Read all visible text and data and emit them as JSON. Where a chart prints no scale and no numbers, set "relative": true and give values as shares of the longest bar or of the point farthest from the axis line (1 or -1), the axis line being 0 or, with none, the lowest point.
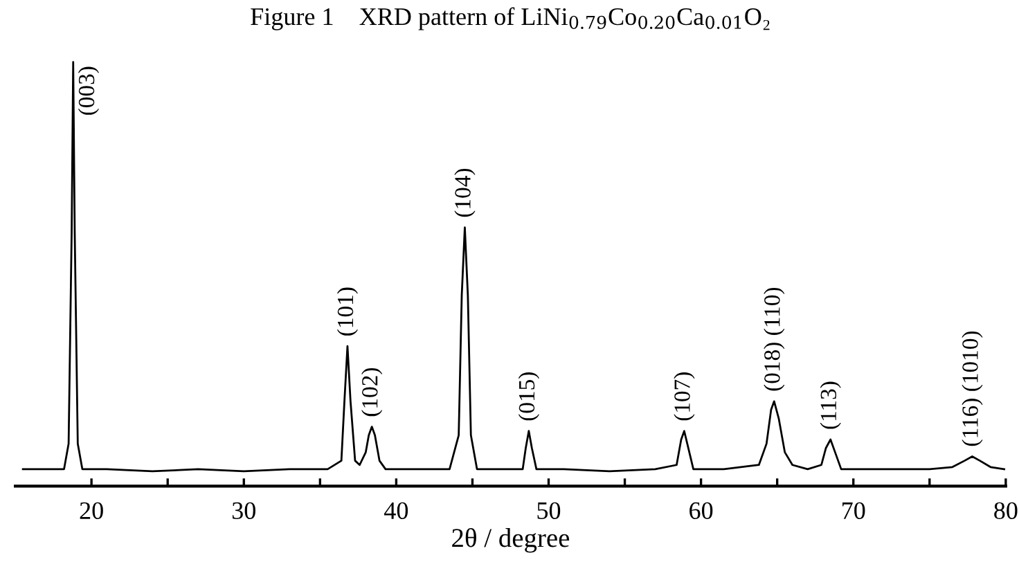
{
  "chart_data": {
    "type": "line",
    "relative": true,
    "title": "Figure 1    XRD pattern of LiNi$_{0.79}$Co$_{0.20}$Ca$_{0.01}$O₂",
    "xlabel": "2θ / degree",
    "xlim": [
      15,
      80
    ],
    "xticks": [
      20,
      {
        "value": 25,
        "label": null
      },
      30,
      {
        "value": 35,
        "label": null
      },
      40,
      {
        "value": 45,
        "label": null
      },
      50,
      {
        "value": 55,
        "label": null
      },
      60,
      {
        "value": 65,
        "label": null
      },
      70,
      {
        "value": 75,
        "label": null
      },
      80
    ],
    "tick_labels": "x",
    "series": [
      {
        "color": "#000000",
        "x": [
          15.5,
          17.0,
          18.2,
          18.5,
          18.7,
          18.8,
          18.9,
          19.1,
          19.4,
          21.0,
          24.0,
          27.0,
          30.0,
          33.0,
          35.5,
          36.4,
          36.6,
          36.8,
          37.0,
          37.3,
          37.6,
          38.0,
          38.2,
          38.4,
          38.6,
          38.9,
          39.3,
          41.0,
          43.5,
          44.1,
          44.3,
          44.5,
          44.7,
          44.9,
          45.3,
          47.0,
          48.3,
          48.5,
          48.7,
          48.9,
          49.2,
          51.0,
          54.0,
          57.0,
          58.4,
          58.7,
          58.9,
          59.1,
          59.5,
          61.5,
          63.8,
          64.3,
          64.6,
          64.8,
          65.1,
          65.5,
          66.0,
          67.0,
          67.9,
          68.2,
          68.5,
          68.8,
          69.2,
          72.0,
          75.0,
          76.5,
          77.3,
          77.8,
          78.3,
          79.0,
          79.9
        ],
        "values": [
          0.04,
          0.04,
          0.04,
          0.1,
          0.6,
          1.0,
          0.6,
          0.1,
          0.04,
          0.04,
          0.035,
          0.04,
          0.035,
          0.04,
          0.04,
          0.06,
          0.2,
          0.33,
          0.2,
          0.06,
          0.05,
          0.08,
          0.12,
          0.14,
          0.12,
          0.06,
          0.04,
          0.04,
          0.04,
          0.12,
          0.45,
          0.61,
          0.45,
          0.12,
          0.04,
          0.04,
          0.04,
          0.09,
          0.13,
          0.09,
          0.04,
          0.04,
          0.035,
          0.04,
          0.05,
          0.11,
          0.13,
          0.1,
          0.04,
          0.04,
          0.05,
          0.1,
          0.18,
          0.2,
          0.16,
          0.08,
          0.05,
          0.04,
          0.05,
          0.09,
          0.11,
          0.08,
          0.04,
          0.04,
          0.04,
          0.045,
          0.06,
          0.07,
          0.06,
          0.045,
          0.04
        ]
      }
    ],
    "annotations": [
      {
        "text": "(003)",
        "x": 18.8,
        "y": 1.0
      },
      {
        "text": "(101)",
        "x": 36.8,
        "y": 0.33
      },
      {
        "text": "(102)",
        "x": 38.4,
        "y": 0.14
      },
      {
        "text": "(104)",
        "x": 44.5,
        "y": 0.61
      },
      {
        "text": "(015)",
        "x": 48.7,
        "y": 0.13
      },
      {
        "text": "(107)",
        "x": 58.9,
        "y": 0.13
      },
      {
        "text": "(018) (110)",
        "x": 64.8,
        "y": 0.2
      },
      {
        "text": "(113)",
        "x": 68.5,
        "y": 0.11
      },
      {
        "text": "(116) (1010)",
        "x": 77.8,
        "y": 0.07
      }
    ]
  }
}
